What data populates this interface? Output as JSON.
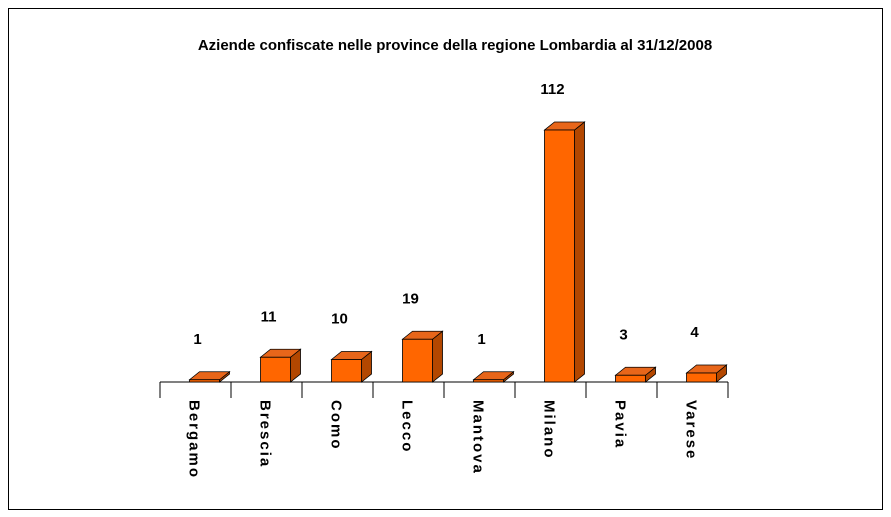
{
  "chart_data": {
    "type": "bar",
    "title": "Aziende confiscate nelle province della regione Lombardia al 31/12/2008",
    "categories": [
      "Bergamo",
      "Brescia",
      "Como",
      "Lecco",
      "Mantova",
      "Milano",
      "Pavia",
      "Varese"
    ],
    "values": [
      1,
      11,
      10,
      19,
      1,
      112,
      3,
      4
    ],
    "color": "#ff6600"
  }
}
